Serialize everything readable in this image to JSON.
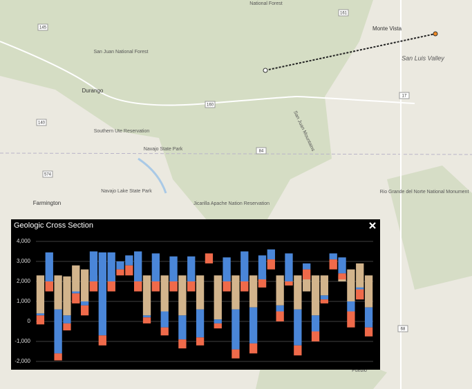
{
  "map": {
    "labels": [
      "National Forest",
      "Monte Vista",
      "San Juan National Forest",
      "Durango",
      "San Luis Valley",
      "Southern Ute Reservation",
      "Navajo State Park",
      "San Juan Mountains",
      "Navajo Lake State Park",
      "Jicarilla Apache Nation Reservation",
      "Rio Grande del Norte National Monument",
      "Farmington",
      "Pueblo"
    ],
    "shields": [
      "145",
      "160",
      "161",
      "140",
      "574",
      "84",
      "17",
      "68"
    ]
  },
  "chart_data": {
    "type": "floating-bar",
    "title": "Geologic Cross Section",
    "ylim": [
      -2000,
      4000
    ],
    "yticks": [
      {
        "value": 4000,
        "label": "4,000"
      },
      {
        "value": 3000,
        "label": "3,000"
      },
      {
        "value": 2000,
        "label": "2,000"
      },
      {
        "value": 1000,
        "label": "1,000"
      },
      0,
      {
        "value": -1000,
        "label": "-1,000"
      },
      {
        "value": -2000,
        "label": "-2,000"
      }
    ],
    "grid": true,
    "series": [
      {
        "color": "#d2b48c",
        "low": [
          400,
          1500,
          600,
          300,
          1500,
          1000,
          1500,
          null,
          1500,
          null,
          null,
          1500,
          300,
          1500,
          500,
          1500,
          300,
          1500,
          600,
          null,
          100,
          1500,
          600,
          1500,
          700,
          1700,
          null,
          800,
          1800,
          600,
          1500,
          300,
          1300,
          null,
          2000,
          1000,
          1100,
          700
        ],
        "high": [
          2300,
          2300,
          2300,
          2250,
          2800,
          2600,
          2300,
          null,
          2300,
          null,
          null,
          2300,
          2300,
          2300,
          2300,
          2300,
          2300,
          2300,
          2300,
          null,
          2300,
          2300,
          2300,
          2300,
          2300,
          2300,
          null,
          2300,
          2300,
          2300,
          2300,
          2300,
          2300,
          null,
          2300,
          2600,
          2900,
          2300
        ]
      },
      {
        "color": "#4a86d8",
        "low": [
          300,
          2000,
          -1600,
          -100,
          1400,
          800,
          2000,
          -700,
          2000,
          2600,
          2800,
          2000,
          200,
          2000,
          -300,
          2000,
          -900,
          2000,
          -800,
          null,
          -100,
          2000,
          -1400,
          2000,
          -1100,
          2100,
          3100,
          500,
          2000,
          -1200,
          2600,
          -500,
          1100,
          3100,
          2400,
          500,
          1600,
          -300
        ],
        "high": [
          400,
          3450,
          600,
          300,
          1500,
          1000,
          3500,
          3450,
          3450,
          3000,
          3300,
          3500,
          300,
          3400,
          500,
          3250,
          300,
          3250,
          600,
          null,
          100,
          3200,
          600,
          3500,
          700,
          3300,
          3600,
          800,
          3400,
          600,
          2900,
          300,
          1300,
          3400,
          3200,
          1000,
          1700,
          700
        ]
      },
      {
        "color": "#ef6a4a",
        "low": [
          -150,
          1500,
          -1950,
          -450,
          900,
          300,
          1500,
          -1200,
          1500,
          2300,
          2300,
          1500,
          -100,
          1500,
          -700,
          1500,
          -1350,
          1500,
          -1200,
          2900,
          -350,
          1500,
          -1850,
          1500,
          -1600,
          1700,
          2600,
          0,
          1800,
          -1700,
          2100,
          -1000,
          900,
          2600,
          2100,
          -300,
          1100,
          -750
        ],
        "high": [
          300,
          2000,
          -1600,
          -100,
          1400,
          800,
          2000,
          -700,
          2000,
          2600,
          2800,
          2000,
          200,
          2000,
          -300,
          2000,
          -900,
          2000,
          -800,
          3400,
          -100,
          2000,
          -1400,
          2000,
          -1100,
          2100,
          3100,
          500,
          2000,
          -1200,
          2600,
          -500,
          1100,
          3100,
          2400,
          500,
          1600,
          -300
        ]
      }
    ]
  }
}
